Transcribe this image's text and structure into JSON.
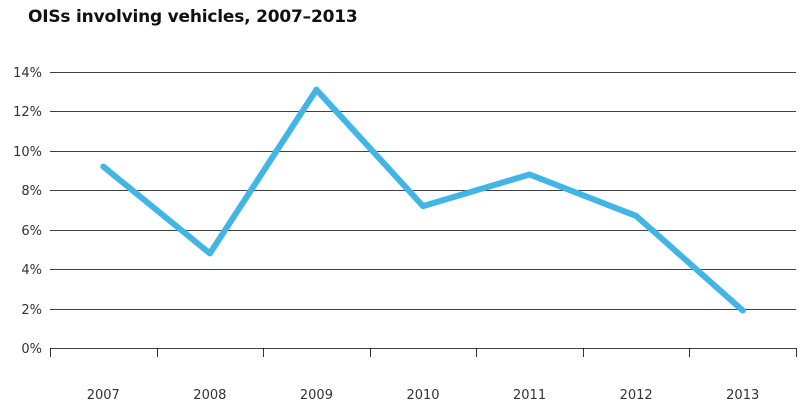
{
  "chart_data": {
    "type": "line",
    "title": "OISs involving vehicles, 2007–2013",
    "xlabel": "",
    "ylabel": "",
    "categories": [
      "2007",
      "2008",
      "2009",
      "2010",
      "2011",
      "2012",
      "2013"
    ],
    "series": [
      {
        "values": [
          9.2,
          4.8,
          13.1,
          7.2,
          8.8,
          6.7,
          1.9
        ]
      }
    ],
    "ylim": [
      0,
      14
    ],
    "yticks": [
      0,
      2,
      4,
      6,
      8,
      10,
      12,
      14
    ],
    "ytick_labels": [
      "0%",
      "2%",
      "4%",
      "6%",
      "8%",
      "10%",
      "12%",
      "14%"
    ],
    "grid": true,
    "legend": "none",
    "line_color": "#41b6e6",
    "grid_color": "#000000"
  }
}
